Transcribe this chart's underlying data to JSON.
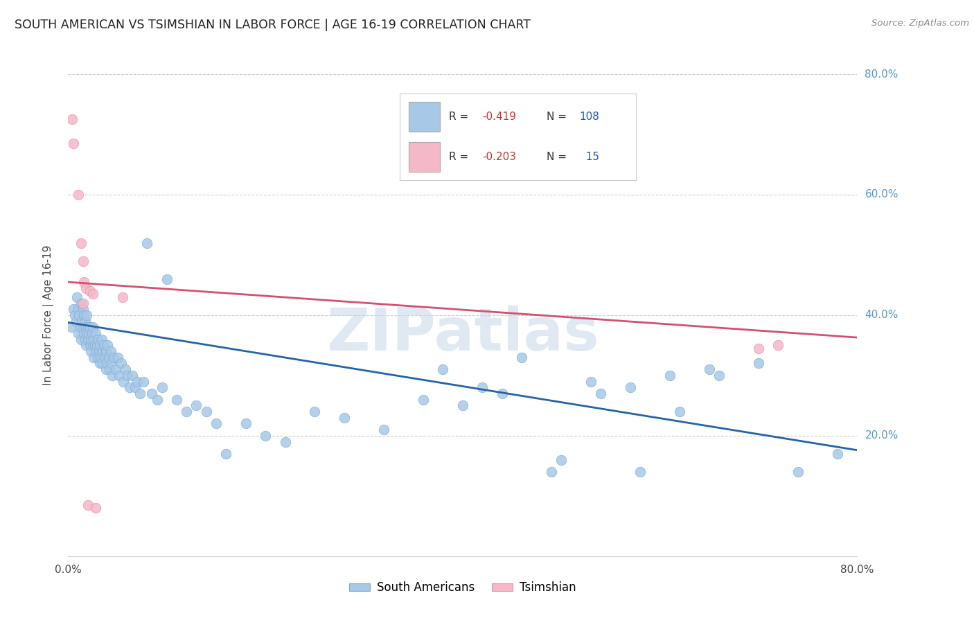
{
  "title": "SOUTH AMERICAN VS TSIMSHIAN IN LABOR FORCE | AGE 16-19 CORRELATION CHART",
  "source": "Source: ZipAtlas.com",
  "ylabel": "In Labor Force | Age 16-19",
  "x_min": 0.0,
  "x_max": 0.8,
  "y_min": 0.0,
  "y_max": 0.8,
  "blue_color": "#a8c8e8",
  "blue_edge_color": "#7aaacf",
  "pink_color": "#f5b8c8",
  "pink_edge_color": "#e88aaa",
  "blue_line_color": "#2563a8",
  "pink_line_color": "#d45070",
  "background": "#ffffff",
  "grid_color": "#cccccc",
  "watermark": "ZIPatlas",
  "blue_label_R": "R = ",
  "blue_label_Rval": "-0.419",
  "blue_label_N": "N = 108",
  "pink_label_R": "R = ",
  "pink_label_Rval": "-0.203",
  "pink_label_N": "N =  15",
  "blue_intercept": 0.388,
  "blue_slope": -0.265,
  "pink_intercept": 0.455,
  "pink_slope": -0.115,
  "blue_scatter_x": [
    0.003,
    0.005,
    0.007,
    0.008,
    0.009,
    0.01,
    0.01,
    0.011,
    0.012,
    0.013,
    0.013,
    0.014,
    0.015,
    0.015,
    0.016,
    0.016,
    0.017,
    0.017,
    0.018,
    0.018,
    0.019,
    0.019,
    0.02,
    0.02,
    0.021,
    0.022,
    0.022,
    0.023,
    0.023,
    0.024,
    0.025,
    0.025,
    0.026,
    0.026,
    0.027,
    0.028,
    0.028,
    0.029,
    0.03,
    0.03,
    0.031,
    0.032,
    0.032,
    0.033,
    0.034,
    0.035,
    0.035,
    0.036,
    0.037,
    0.038,
    0.038,
    0.039,
    0.04,
    0.041,
    0.042,
    0.043,
    0.044,
    0.045,
    0.046,
    0.048,
    0.05,
    0.052,
    0.054,
    0.056,
    0.058,
    0.06,
    0.062,
    0.065,
    0.068,
    0.07,
    0.073,
    0.076,
    0.08,
    0.085,
    0.09,
    0.095,
    0.1,
    0.11,
    0.12,
    0.13,
    0.14,
    0.15,
    0.16,
    0.18,
    0.2,
    0.22,
    0.25,
    0.28,
    0.32,
    0.36,
    0.4,
    0.44,
    0.49,
    0.53,
    0.57,
    0.61,
    0.65,
    0.7,
    0.74,
    0.78,
    0.38,
    0.42,
    0.46,
    0.5,
    0.54,
    0.58,
    0.62,
    0.66
  ],
  "blue_scatter_y": [
    0.38,
    0.41,
    0.4,
    0.39,
    0.43,
    0.41,
    0.37,
    0.4,
    0.38,
    0.42,
    0.36,
    0.39,
    0.41,
    0.38,
    0.4,
    0.37,
    0.39,
    0.36,
    0.38,
    0.35,
    0.37,
    0.4,
    0.38,
    0.36,
    0.37,
    0.35,
    0.38,
    0.36,
    0.34,
    0.37,
    0.35,
    0.38,
    0.36,
    0.33,
    0.35,
    0.34,
    0.37,
    0.35,
    0.33,
    0.36,
    0.34,
    0.32,
    0.35,
    0.33,
    0.36,
    0.34,
    0.32,
    0.35,
    0.33,
    0.31,
    0.34,
    0.32,
    0.35,
    0.33,
    0.31,
    0.34,
    0.32,
    0.3,
    0.33,
    0.31,
    0.33,
    0.3,
    0.32,
    0.29,
    0.31,
    0.3,
    0.28,
    0.3,
    0.28,
    0.29,
    0.27,
    0.29,
    0.52,
    0.27,
    0.26,
    0.28,
    0.46,
    0.26,
    0.24,
    0.25,
    0.24,
    0.22,
    0.17,
    0.22,
    0.2,
    0.19,
    0.24,
    0.23,
    0.21,
    0.26,
    0.25,
    0.27,
    0.14,
    0.29,
    0.28,
    0.3,
    0.31,
    0.32,
    0.14,
    0.17,
    0.31,
    0.28,
    0.33,
    0.16,
    0.27,
    0.14,
    0.24,
    0.3
  ],
  "pink_scatter_x": [
    0.004,
    0.005,
    0.01,
    0.013,
    0.015,
    0.016,
    0.018,
    0.02,
    0.022,
    0.025,
    0.028,
    0.015,
    0.055,
    0.7,
    0.72
  ],
  "pink_scatter_y": [
    0.725,
    0.685,
    0.6,
    0.52,
    0.49,
    0.455,
    0.445,
    0.085,
    0.44,
    0.435,
    0.08,
    0.42,
    0.43,
    0.345,
    0.35
  ]
}
